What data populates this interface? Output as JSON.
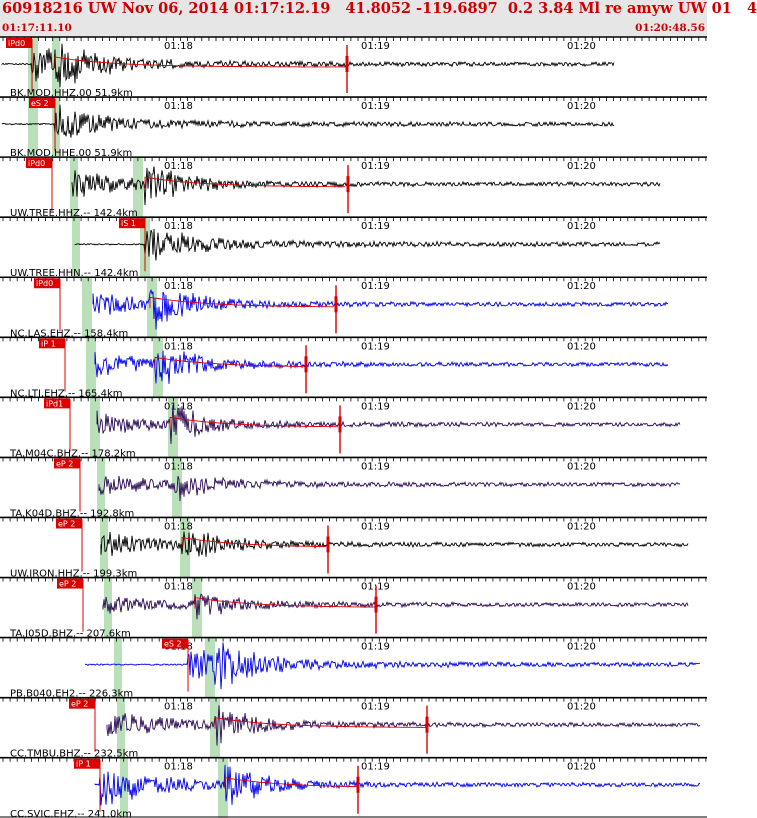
{
  "header": {
    "title": "60918216 UW Nov 06, 2014 01:17:12.19   41.8052 -119.6897  0.2 3.84 Ml re amyw UW 01   4",
    "start_time": "01:17:11.10",
    "end_time": "01:20:48.56"
  },
  "time_labels": [
    "01:18",
    "01:19",
    "01:20"
  ],
  "colors": {
    "panel_border": "#000000",
    "pick_box": "#dd0000",
    "pick_text": "#ffffff",
    "window_shade": "#b9e0b9",
    "trace_black": "#000000",
    "trace_blue": "#0000ee",
    "trace_purple": "#2a0a55",
    "fit_line": "#dd0000"
  },
  "stations": [
    {
      "label": "BK.MOD.HHZ.00 51.9km",
      "pick": "iPd0",
      "color": "black"
    },
    {
      "label": "BK.MOD.HHE.00 51.9km",
      "pick": "eS 2",
      "color": "black"
    },
    {
      "label": "UW.TREE.HHZ.-- 142.4km",
      "pick": "iPd0",
      "color": "black"
    },
    {
      "label": "UW.TREE.HHN.-- 142.4km",
      "pick": "iS 1",
      "color": "black"
    },
    {
      "label": "NC.LAS.EHZ.-- 158.4km",
      "pick": "iPd0",
      "color": "blue"
    },
    {
      "label": "NC.LTI.EHZ.-- 165.4km",
      "pick": "iP 1",
      "color": "blue"
    },
    {
      "label": "TA.M04C.BHZ.-- 178.2km",
      "pick": "iPd1",
      "color": "purple"
    },
    {
      "label": "TA.K04D.BHZ.-- 192.8km",
      "pick": "eP 2",
      "color": "purple"
    },
    {
      "label": "UW.IRON.HHZ.-- 199.3km",
      "pick": "eP 2",
      "color": "black"
    },
    {
      "label": "TA.J05D.BHZ.-- 207.6km",
      "pick": "eP 2",
      "color": "purple"
    },
    {
      "label": "PB.B040.EH2.-- 226.3km",
      "pick": "eS 2",
      "color": "blue"
    },
    {
      "label": "CC.TMBU.BHZ.-- 232.5km",
      "pick": "eP 2",
      "color": "purple"
    },
    {
      "label": "CC.SVIC.EHZ.-- 241.0km",
      "pick": "iP 1",
      "color": "blue"
    }
  ]
}
